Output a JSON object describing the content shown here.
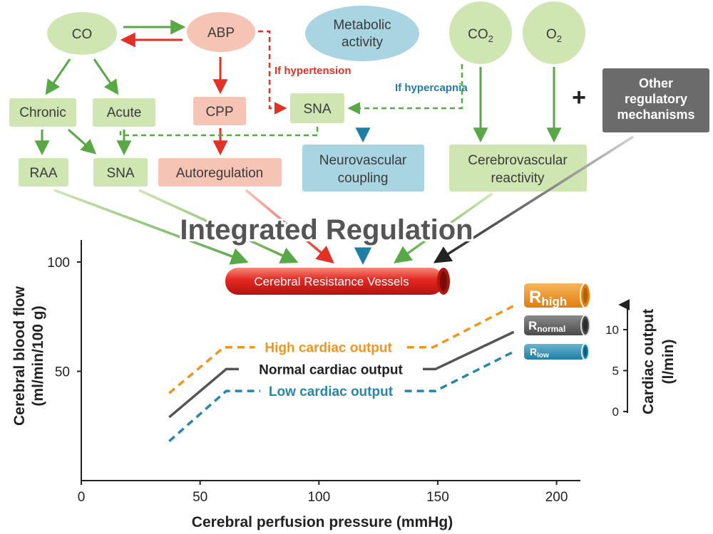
{
  "colors": {
    "green_fill": "#cfe6b2",
    "green_line": "#58a845",
    "pink_fill": "#f6c4b4",
    "red_line": "#e33126",
    "blue_fill": "#a9d5e2",
    "blue_line": "#1f7ea5",
    "gray_fill": "#6b6b6b",
    "text_dark": "#3a3a3a",
    "orange": "#f0961f",
    "normal_line": "#555555",
    "low_line": "#2a86a8",
    "vessel_red": "#e52620"
  },
  "nodes": {
    "co": "CO",
    "abp": "ABP",
    "metabolic_line1": "Metabolic",
    "metabolic_line2": "activity",
    "co2_base": "CO",
    "co2_sub": "2",
    "o2_base": "O",
    "o2_sub": "2",
    "chronic": "Chronic",
    "acute": "Acute",
    "cpp": "CPP",
    "sna_mid": "SNA",
    "other_line1": "Other",
    "other_line2": "regulatory",
    "other_line3": "mechanisms",
    "raa": "RAA",
    "sna_low": "SNA",
    "autoregulation": "Autoregulation",
    "neuro_line1": "Neurovascular",
    "neuro_line2": "coupling",
    "cerebro_line1": "Cerebrovascular",
    "cerebro_line2": "reactivity"
  },
  "labels": {
    "if_hypertension": "If hypertension",
    "if_hypercapnia": "If hypercapnia",
    "plus": "+",
    "integrated": "Integrated Regulation",
    "vessels": "Cerebral Resistance Vessels"
  },
  "resistance": {
    "high_base": "R",
    "high_sub": "high",
    "normal_base": "R",
    "normal_sub": "normal",
    "low_base": "R",
    "low_sub": "low"
  },
  "chart_data": {
    "type": "line",
    "xlabel": "Cerebral perfusion pressure (mmHg)",
    "ylabel_line1": "Cerebral blood flow",
    "ylabel_line2": "(ml/min/100 g)",
    "xlim": [
      0,
      210
    ],
    "ylim": [
      0,
      110
    ],
    "x_ticks": [
      "0",
      "50",
      "100",
      "150",
      "200"
    ],
    "y_ticks": [
      "50",
      "100"
    ],
    "series": [
      {
        "name": "High cardiac output",
        "style": "dashed",
        "x": [
          37,
          60,
          148,
          182
        ],
        "y": [
          40,
          61,
          61,
          80
        ]
      },
      {
        "name": "Normal cardiac output",
        "style": "solid",
        "x": [
          37,
          61,
          149,
          182
        ],
        "y": [
          29,
          51,
          51,
          68
        ]
      },
      {
        "name": "Low cardiac output",
        "style": "dashed",
        "x": [
          37,
          61,
          149,
          182
        ],
        "y": [
          18,
          41,
          41,
          59
        ]
      }
    ],
    "right_axis": {
      "label_line1": "Cardiac output",
      "label_line2": "(l/min)",
      "ticks": [
        "0",
        "5",
        "10"
      ]
    }
  }
}
